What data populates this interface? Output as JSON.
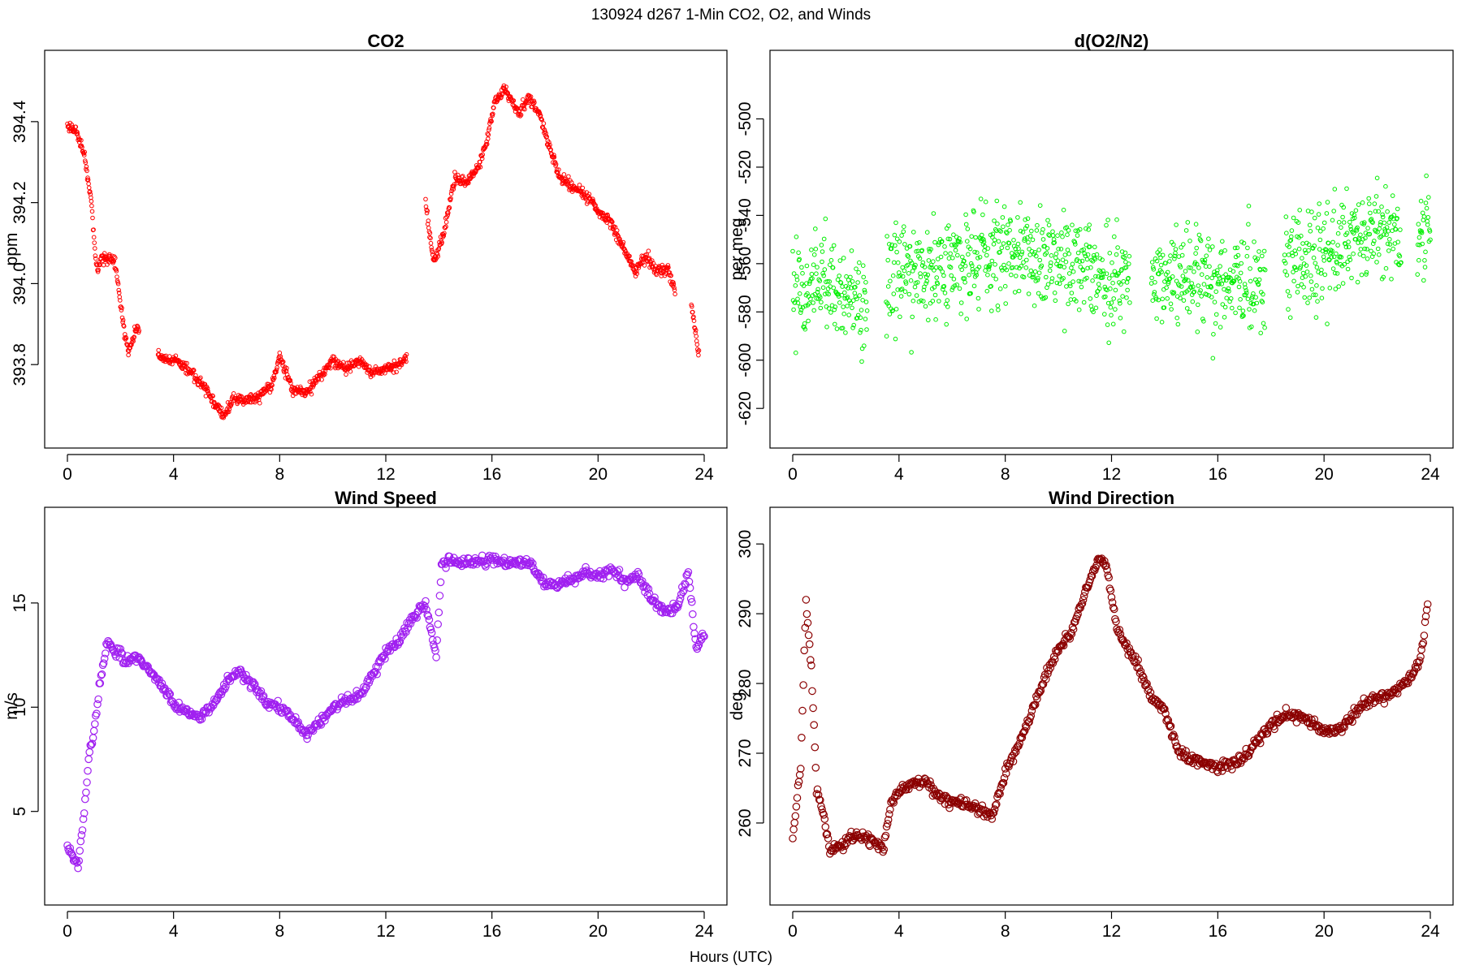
{
  "figure": {
    "title": "130924   d267   1-Min CO2, O2, and Winds",
    "xlabel": "Hours (UTC)"
  },
  "chart_data": [
    {
      "id": "co2",
      "type": "scatter",
      "title": "CO2",
      "xlabel": "",
      "ylabel": "ppm",
      "color": "#ff0000",
      "marker_size": "small",
      "xlim": [
        0,
        24
      ],
      "ylim": [
        393.65,
        394.52
      ],
      "x_ticks": [
        0,
        4,
        8,
        12,
        16,
        20,
        24
      ],
      "y_ticks": [
        393.8,
        394.0,
        394.2,
        394.4
      ],
      "y_tick_labels": [
        "393.8",
        "394.0",
        "394.2",
        "394.4"
      ],
      "grid": false,
      "gaps": [
        [
          2.7,
          3.4
        ],
        [
          12.8,
          13.5
        ],
        [
          22.9,
          23.5
        ]
      ],
      "series": [
        {
          "x": [
            0.0,
            0.3,
            0.6,
            0.9,
            1.1,
            1.3,
            1.6,
            1.8,
            2.1,
            2.3,
            2.6,
            3.5,
            4.0,
            4.5,
            5.0,
            5.5,
            5.9,
            6.3,
            6.7,
            7.2,
            7.7,
            8.0,
            8.5,
            9.0,
            9.5,
            10.0,
            10.5,
            11.0,
            11.5,
            12.0,
            12.5,
            12.8,
            13.5,
            13.8,
            14.2,
            14.6,
            15.0,
            15.5,
            15.8,
            16.1,
            16.5,
            17.0,
            17.4,
            17.8,
            18.2,
            18.6,
            19.0,
            19.5,
            20.0,
            20.5,
            21.0,
            21.4,
            21.8,
            22.2,
            22.6,
            22.9,
            23.5,
            23.8
          ],
          "values": [
            394.39,
            394.38,
            394.33,
            394.2,
            394.03,
            394.06,
            394.06,
            394.05,
            393.9,
            393.83,
            393.89,
            393.82,
            393.81,
            393.79,
            393.76,
            393.71,
            393.67,
            393.72,
            393.71,
            393.72,
            393.75,
            393.82,
            393.74,
            393.73,
            393.77,
            393.81,
            393.79,
            393.81,
            393.78,
            393.79,
            393.8,
            393.82,
            394.2,
            394.05,
            394.13,
            394.26,
            394.25,
            394.29,
            394.35,
            394.45,
            394.48,
            394.42,
            394.46,
            394.42,
            394.33,
            394.26,
            394.24,
            394.22,
            394.18,
            394.15,
            394.08,
            394.03,
            394.07,
            394.03,
            394.04,
            393.98,
            393.96,
            393.82
          ]
        }
      ]
    },
    {
      "id": "o2",
      "type": "scatter",
      "title": "d(O2/N2)",
      "xlabel": "",
      "ylabel": "per meg",
      "color": "#00ee00",
      "marker_size": "small",
      "xlim": [
        0,
        24
      ],
      "ylim": [
        -627,
        -481
      ],
      "x_ticks": [
        0,
        4,
        8,
        12,
        16,
        20,
        24
      ],
      "y_ticks": [
        -620,
        -600,
        -580,
        -560,
        -540,
        -520,
        -500
      ],
      "y_tick_labels": [
        "-620",
        "-600",
        "-580",
        "-560",
        "-540",
        "-520",
        "-500"
      ],
      "grid": false,
      "gaps": [
        [
          2.8,
          3.5
        ],
        [
          12.7,
          13.5
        ],
        [
          17.8,
          18.5
        ],
        [
          22.9,
          23.5
        ]
      ],
      "scatter_sd": 10,
      "series": [
        {
          "x": [
            0.0,
            1.0,
            2.0,
            2.8,
            3.5,
            4.0,
            5.0,
            6.0,
            7.0,
            8.0,
            9.0,
            10.0,
            11.0,
            12.0,
            12.7,
            13.5,
            14.0,
            15.0,
            16.0,
            17.0,
            17.8,
            18.5,
            19.0,
            20.0,
            21.0,
            22.0,
            22.9,
            23.5,
            24.0
          ],
          "values": [
            -567,
            -570,
            -572,
            -575,
            -568,
            -564,
            -563,
            -560,
            -557,
            -552,
            -558,
            -560,
            -563,
            -565,
            -566,
            -565,
            -564,
            -566,
            -568,
            -568,
            -566,
            -560,
            -558,
            -556,
            -550,
            -545,
            -550,
            -550,
            -540
          ]
        }
      ]
    },
    {
      "id": "wind-speed",
      "type": "scatter",
      "title": "Wind Speed",
      "xlabel": "",
      "ylabel": "m/s",
      "color": "#a020f0",
      "marker_size": "large",
      "xlim": [
        0,
        24
      ],
      "ylim": [
        1.6,
        18.5
      ],
      "x_ticks": [
        0,
        4,
        8,
        12,
        16,
        20,
        24
      ],
      "y_ticks": [
        5,
        10,
        15
      ],
      "y_tick_labels": [
        "5",
        "10",
        "15"
      ],
      "grid": false,
      "gaps": [],
      "series": [
        {
          "x": [
            0.0,
            0.2,
            0.4,
            0.6,
            0.8,
            1.0,
            1.2,
            1.5,
            1.8,
            2.2,
            2.6,
            3.0,
            3.5,
            4.0,
            4.5,
            5.0,
            5.5,
            6.0,
            6.5,
            7.0,
            7.5,
            8.0,
            8.5,
            9.0,
            9.5,
            10.0,
            10.5,
            11.0,
            11.5,
            12.0,
            12.5,
            13.0,
            13.5,
            13.9,
            14.1,
            14.5,
            15.0,
            15.5,
            16.0,
            16.5,
            17.0,
            17.5,
            18.0,
            18.5,
            19.0,
            19.5,
            20.0,
            20.5,
            21.0,
            21.5,
            22.0,
            22.5,
            23.0,
            23.4,
            23.7,
            24.0
          ],
          "values": [
            3.5,
            2.8,
            2.3,
            4.5,
            7.5,
            8.8,
            11.0,
            13.2,
            12.7,
            12.2,
            12.4,
            11.9,
            11.2,
            10.1,
            9.8,
            9.5,
            10.1,
            11.2,
            11.7,
            11.0,
            10.2,
            10.0,
            9.5,
            8.7,
            9.3,
            10.0,
            10.3,
            10.6,
            11.5,
            12.6,
            13.2,
            14.2,
            15.0,
            12.5,
            16.8,
            17.1,
            16.9,
            17.0,
            17.1,
            16.9,
            17.0,
            16.8,
            15.9,
            15.8,
            16.2,
            16.5,
            16.3,
            16.6,
            16.0,
            16.3,
            15.2,
            14.6,
            14.8,
            16.5,
            12.8,
            13.5
          ]
        }
      ]
    },
    {
      "id": "wind-direction",
      "type": "scatter",
      "title": "Wind Direction",
      "xlabel": "",
      "ylabel": "deg",
      "color": "#8b0000",
      "marker_size": "large",
      "xlim": [
        0,
        24
      ],
      "ylim": [
        251.5,
        302
      ],
      "x_ticks": [
        0,
        4,
        8,
        12,
        16,
        20,
        24
      ],
      "y_ticks": [
        260,
        270,
        280,
        290,
        300
      ],
      "y_tick_labels": [
        "260",
        "270",
        "280",
        "290",
        "300"
      ],
      "grid": false,
      "gaps": [],
      "series": [
        {
          "x": [
            0.0,
            0.3,
            0.5,
            0.7,
            0.9,
            1.1,
            1.4,
            1.8,
            2.2,
            2.6,
            3.0,
            3.4,
            3.7,
            4.0,
            4.5,
            5.0,
            5.5,
            6.0,
            6.5,
            7.0,
            7.5,
            8.0,
            8.5,
            9.0,
            9.5,
            10.0,
            10.5,
            11.0,
            11.5,
            11.8,
            12.2,
            12.6,
            13.0,
            13.5,
            14.0,
            14.5,
            15.0,
            15.5,
            16.0,
            16.5,
            17.0,
            17.5,
            18.0,
            18.5,
            19.0,
            19.5,
            20.0,
            20.5,
            21.0,
            21.5,
            22.0,
            22.5,
            23.0,
            23.3,
            23.6,
            23.9
          ],
          "values": [
            258.0,
            268.0,
            292.0,
            282.0,
            265.0,
            262.0,
            256.0,
            256.5,
            258.5,
            258.0,
            257.5,
            256.0,
            263.0,
            264.5,
            265.5,
            266.0,
            264.0,
            263.0,
            262.5,
            262.0,
            261.0,
            267.0,
            271.0,
            276.0,
            281.0,
            285.0,
            287.5,
            293.0,
            298.0,
            297.0,
            288.0,
            285.0,
            282.5,
            278.0,
            276.0,
            270.5,
            269.0,
            268.5,
            268.0,
            268.5,
            269.5,
            272.0,
            274.0,
            275.5,
            275.5,
            274.5,
            273.0,
            273.5,
            275.0,
            277.0,
            278.0,
            278.5,
            280.0,
            281.0,
            283.0,
            291.0
          ]
        }
      ]
    }
  ]
}
